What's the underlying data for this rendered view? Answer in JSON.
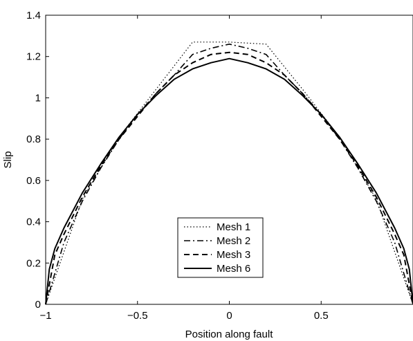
{
  "chart_data": {
    "type": "line",
    "title": "",
    "xlabel": "Position along fault",
    "ylabel": "Slip",
    "xlim": [
      -1,
      1
    ],
    "ylim": [
      0,
      1.4
    ],
    "xticks": [
      -1,
      -0.5,
      0,
      0.5
    ],
    "xtick_labels": [
      "−1",
      "−0.5",
      "0",
      "0.5"
    ],
    "yticks": [
      0,
      0.2,
      0.4,
      0.6,
      0.8,
      1,
      1.2,
      1.4
    ],
    "ytick_labels": [
      "0",
      "0.2",
      "0.4",
      "0.6",
      "0.8",
      "1",
      "1.2",
      "1.4"
    ],
    "grid": false,
    "legend_position": "bottom-center",
    "series": [
      {
        "name": "Mesh 1",
        "style": "dotted",
        "x": [
          -1,
          -0.8,
          -0.6,
          -0.4,
          -0.2,
          0,
          0.2,
          0.4,
          0.6,
          0.8,
          1
        ],
        "y": [
          0,
          0.51,
          0.81,
          1.04,
          1.27,
          1.27,
          1.26,
          1.04,
          0.81,
          0.51,
          0
        ]
      },
      {
        "name": "Mesh 2",
        "style": "dashdot",
        "x": [
          -1,
          -0.9,
          -0.8,
          -0.7,
          -0.6,
          -0.5,
          -0.4,
          -0.3,
          -0.2,
          -0.1,
          0,
          0.1,
          0.2,
          0.3,
          0.4,
          0.5,
          0.6,
          0.7,
          0.8,
          0.9,
          1
        ],
        "y": [
          0,
          0.3,
          0.5,
          0.66,
          0.8,
          0.92,
          1.02,
          1.11,
          1.21,
          1.24,
          1.26,
          1.24,
          1.21,
          1.11,
          1.02,
          0.92,
          0.8,
          0.66,
          0.5,
          0.3,
          0
        ]
      },
      {
        "name": "Mesh 3",
        "style": "dashed",
        "x": [
          -1,
          -0.95,
          -0.9,
          -0.8,
          -0.7,
          -0.6,
          -0.5,
          -0.4,
          -0.3,
          -0.2,
          -0.1,
          0,
          0.1,
          0.2,
          0.3,
          0.4,
          0.5,
          0.6,
          0.7,
          0.8,
          0.9,
          0.95,
          1
        ],
        "y": [
          0,
          0.24,
          0.34,
          0.52,
          0.67,
          0.8,
          0.91,
          1.02,
          1.11,
          1.17,
          1.21,
          1.22,
          1.21,
          1.17,
          1.11,
          1.02,
          0.91,
          0.8,
          0.67,
          0.52,
          0.34,
          0.24,
          0
        ]
      },
      {
        "name": "Mesh 6",
        "style": "solid",
        "x": [
          -1,
          -0.98,
          -0.95,
          -0.9,
          -0.8,
          -0.7,
          -0.6,
          -0.5,
          -0.4,
          -0.3,
          -0.2,
          -0.1,
          0,
          0.1,
          0.2,
          0.3,
          0.4,
          0.5,
          0.6,
          0.7,
          0.8,
          0.9,
          0.95,
          0.98,
          1
        ],
        "y": [
          0,
          0.17,
          0.27,
          0.37,
          0.54,
          0.68,
          0.81,
          0.92,
          1.01,
          1.09,
          1.14,
          1.17,
          1.19,
          1.17,
          1.14,
          1.09,
          1.01,
          0.92,
          0.81,
          0.68,
          0.54,
          0.37,
          0.27,
          0.17,
          0
        ]
      }
    ]
  }
}
